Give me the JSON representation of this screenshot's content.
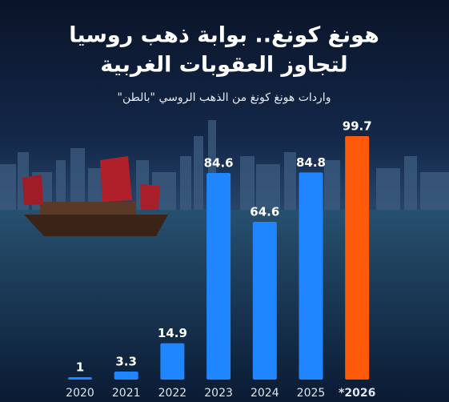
{
  "chart_data": {
    "type": "bar",
    "title": [
      "هونغ كونغ.. بوابة ذهب روسيا",
      "لتجاوز العقوبات الغربية"
    ],
    "subtitle": "واردات هونغ كونغ من الذهب الروسي \"بالطن\"",
    "categories": [
      "2020",
      "2021",
      "2022",
      "2023",
      "2024",
      "2025",
      "*2026"
    ],
    "values": [
      1,
      3.3,
      14.9,
      84.6,
      64.6,
      84.8,
      99.7
    ],
    "colors": [
      "#1f86ff",
      "#1f86ff",
      "#1f86ff",
      "#1f86ff",
      "#1f86ff",
      "#1f86ff",
      "#ff5a0a"
    ]
  }
}
